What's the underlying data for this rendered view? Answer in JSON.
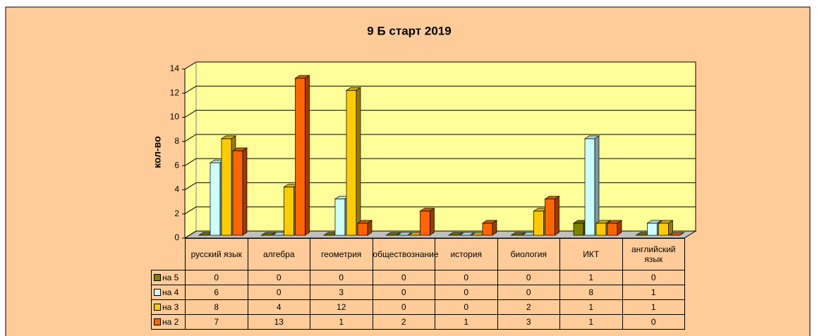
{
  "chart_data": {
    "type": "bar3d",
    "title": "9 Б старт 2019",
    "y_label": "кол-во",
    "categories": [
      "русский язык",
      "алгебра",
      "геометрия",
      "обществознание",
      "история",
      "биология",
      "ИКТ",
      "английский язык"
    ],
    "series": [
      {
        "name": "на 5",
        "color": "#808000",
        "values": [
          0,
          0,
          0,
          0,
          0,
          0,
          1,
          0
        ]
      },
      {
        "name": "на 4",
        "color": "#ccffff",
        "values": [
          6,
          0,
          3,
          0,
          0,
          0,
          8,
          1
        ]
      },
      {
        "name": "на 3",
        "color": "#ffcc00",
        "values": [
          8,
          4,
          12,
          0,
          0,
          2,
          1,
          1
        ]
      },
      {
        "name": "на 2",
        "color": "#ff6600",
        "values": [
          7,
          13,
          1,
          2,
          1,
          3,
          1,
          0
        ]
      }
    ],
    "ylim": [
      0,
      14
    ],
    "yticks": [
      0,
      2,
      4,
      6,
      8,
      10,
      12,
      14
    ],
    "grid": true,
    "data_table": true
  }
}
